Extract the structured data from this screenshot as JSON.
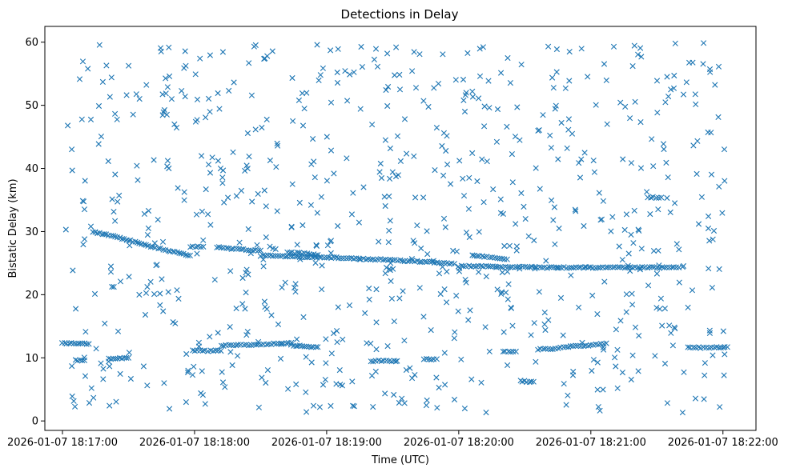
{
  "chart_data": {
    "type": "scatter",
    "title": "Detections in Delay",
    "xlabel": "Time (UTC)",
    "ylabel": "Bistatic Delay (km)",
    "x_unit": "time",
    "x_range": [
      "2026-01-07 18:16:52",
      "2026-01-07 18:22:15"
    ],
    "ylim": [
      -1.5,
      62.5
    ],
    "x_ticks": [
      "2026-01-07 18:17:00",
      "2026-01-07 18:18:00",
      "2026-01-07 18:19:00",
      "2026-01-07 18:20:00",
      "2026-01-07 18:21:00",
      "2026-01-07 18:22:00"
    ],
    "y_ticks": [
      0,
      10,
      20,
      30,
      40,
      50,
      60
    ],
    "grid": false,
    "marker": "x",
    "color": "#1f77b4",
    "tracks": [
      {
        "x": [
          "2026-01-07 18:17:00",
          "2026-01-07 18:17:05",
          "2026-01-07 18:17:10",
          "2026-01-07 18:17:12"
        ],
        "y": [
          12.3,
          12.3,
          12.2,
          12.2
        ]
      },
      {
        "x": [
          "2026-01-07 18:17:06",
          "2026-01-07 18:17:10"
        ],
        "y": [
          9.6,
          9.6
        ]
      },
      {
        "x": [
          "2026-01-07 18:17:14",
          "2026-01-07 18:17:20",
          "2026-01-07 18:17:26",
          "2026-01-07 18:17:34",
          "2026-01-07 18:17:40",
          "2026-01-07 18:17:48",
          "2026-01-07 18:17:54",
          "2026-01-07 18:17:58"
        ],
        "y": [
          29.9,
          29.5,
          29.0,
          28.3,
          27.6,
          27.0,
          26.5,
          26.2
        ]
      },
      {
        "x": [
          "2026-01-07 18:17:21",
          "2026-01-07 18:17:26",
          "2026-01-07 18:17:30"
        ],
        "y": [
          9.8,
          9.9,
          10.0
        ]
      },
      {
        "x": [
          "2026-01-07 18:17:58",
          "2026-01-07 18:18:04"
        ],
        "y": [
          27.6,
          27.6
        ]
      },
      {
        "x": [
          "2026-01-07 18:17:59",
          "2026-01-07 18:18:06",
          "2026-01-07 18:18:12"
        ],
        "y": [
          11.2,
          11.1,
          11.1
        ]
      },
      {
        "x": [
          "2026-01-07 18:18:10",
          "2026-01-07 18:18:20",
          "2026-01-07 18:18:30"
        ],
        "y": [
          27.5,
          27.2,
          27.0
        ]
      },
      {
        "x": [
          "2026-01-07 18:18:12",
          "2026-01-07 18:18:20",
          "2026-01-07 18:18:28",
          "2026-01-07 18:18:36",
          "2026-01-07 18:18:44"
        ],
        "y": [
          11.9,
          12.0,
          12.1,
          12.2,
          12.4
        ]
      },
      {
        "x": [
          "2026-01-07 18:18:30",
          "2026-01-07 18:18:40",
          "2026-01-07 18:18:50",
          "2026-01-07 18:19:00",
          "2026-01-07 18:19:10",
          "2026-01-07 18:19:20",
          "2026-01-07 18:19:30",
          "2026-01-07 18:19:40",
          "2026-01-07 18:19:50",
          "2026-01-07 18:19:58"
        ],
        "y": [
          26.2,
          26.1,
          26.0,
          25.9,
          25.8,
          25.6,
          25.5,
          25.3,
          25.1,
          24.9
        ]
      },
      {
        "x": [
          "2026-01-07 18:18:42",
          "2026-01-07 18:18:50",
          "2026-01-07 18:18:56"
        ],
        "y": [
          26.7,
          26.5,
          26.3
        ]
      },
      {
        "x": [
          "2026-01-07 18:18:44",
          "2026-01-07 18:18:50",
          "2026-01-07 18:18:56"
        ],
        "y": [
          12.0,
          11.8,
          11.7
        ]
      },
      {
        "x": [
          "2026-01-07 18:19:20",
          "2026-01-07 18:19:26",
          "2026-01-07 18:19:32"
        ],
        "y": [
          9.5,
          9.5,
          9.5
        ]
      },
      {
        "x": [
          "2026-01-07 18:19:44",
          "2026-01-07 18:19:50"
        ],
        "y": [
          9.8,
          9.8
        ]
      },
      {
        "x": [
          "2026-01-07 18:20:00",
          "2026-01-07 18:20:10",
          "2026-01-07 18:20:20",
          "2026-01-07 18:20:30",
          "2026-01-07 18:20:40",
          "2026-01-07 18:20:50",
          "2026-01-07 18:21:00",
          "2026-01-07 18:21:10",
          "2026-01-07 18:21:20",
          "2026-01-07 18:21:30",
          "2026-01-07 18:21:40"
        ],
        "y": [
          24.5,
          24.5,
          24.4,
          24.4,
          24.3,
          24.3,
          24.3,
          24.3,
          24.3,
          24.3,
          24.3
        ]
      },
      {
        "x": [
          "2026-01-07 18:20:06",
          "2026-01-07 18:20:14",
          "2026-01-07 18:20:22"
        ],
        "y": [
          26.2,
          25.9,
          25.6
        ]
      },
      {
        "x": [
          "2026-01-07 18:20:20",
          "2026-01-07 18:20:26"
        ],
        "y": [
          11.0,
          11.0
        ]
      },
      {
        "x": [
          "2026-01-07 18:20:28",
          "2026-01-07 18:20:34"
        ],
        "y": [
          6.3,
          6.2
        ]
      },
      {
        "x": [
          "2026-01-07 18:20:36",
          "2026-01-07 18:20:44",
          "2026-01-07 18:20:52",
          "2026-01-07 18:21:00",
          "2026-01-07 18:21:07"
        ],
        "y": [
          11.3,
          11.5,
          11.8,
          12.0,
          12.3
        ]
      },
      {
        "x": [
          "2026-01-07 18:21:26",
          "2026-01-07 18:21:32"
        ],
        "y": [
          35.4,
          35.4
        ]
      },
      {
        "x": [
          "2026-01-07 18:21:44",
          "2026-01-07 18:21:50",
          "2026-01-07 18:21:56",
          "2026-01-07 18:22:02"
        ],
        "y": [
          11.6,
          11.6,
          11.6,
          11.7
        ]
      }
    ]
  }
}
